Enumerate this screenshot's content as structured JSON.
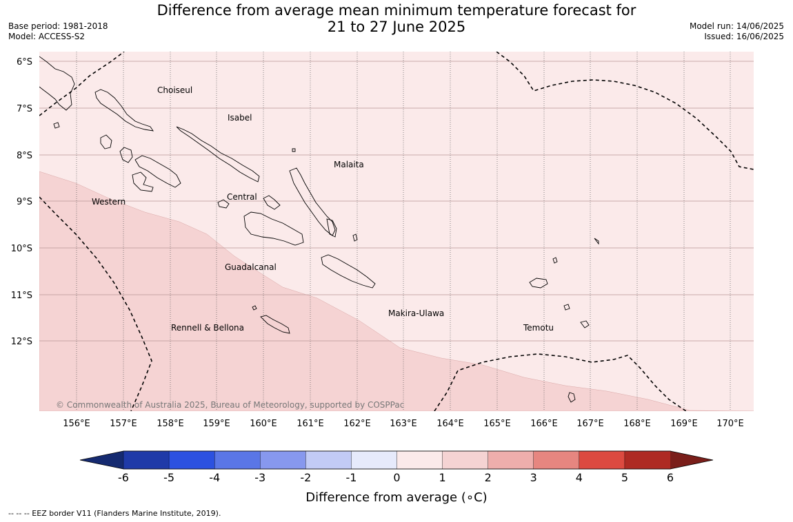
{
  "title": {
    "line1": "Difference from average mean minimum temperature forecast for",
    "line2": "21 to 27 June 2025"
  },
  "meta_left": {
    "base_period": "Base period: 1981-2018",
    "model": "Model: ACCESS-S2"
  },
  "meta_right": {
    "model_run": "Model run: 14/06/2025",
    "issued": "Issued: 16/06/2025"
  },
  "map": {
    "lat_labels": [
      "6°S",
      "7°S",
      "8°S",
      "9°S",
      "10°S",
      "11°S",
      "12°S"
    ],
    "lon_labels": [
      "156°E",
      "157°E",
      "158°E",
      "159°E",
      "160°E",
      "161°E",
      "162°E",
      "163°E",
      "164°E",
      "165°E",
      "166°E",
      "167°E",
      "168°E",
      "169°E",
      "170°E"
    ],
    "province_labels": [
      "Choiseul",
      "Isabel",
      "Malaita",
      "Western",
      "Central",
      "Guadalcanal",
      "Makira-Ulawa",
      "Rennell & Bellona",
      "Temotu"
    ],
    "copyright": "© Commonwealth of Australia 2025, Bureau of Meteorology, supported by COSPPac"
  },
  "colorbar": {
    "ticks": [
      "-6",
      "-5",
      "-4",
      "-3",
      "-2",
      "-1",
      "0",
      "1",
      "2",
      "3",
      "4",
      "5",
      "6"
    ],
    "colors": [
      "#1f3aa8",
      "#2c51e0",
      "#5a76e6",
      "#8798ee",
      "#c2cbf6",
      "#e6eafb",
      "#fbeaea",
      "#f5d3d3",
      "#eeaeac",
      "#e68680",
      "#dc4a40",
      "#ae2a23"
    ],
    "low_extend_color": "#152a70",
    "high_extend_color": "#7a1e1a",
    "label": "Difference from average (∘C)"
  },
  "footer": "--  --  -- EEZ border V11 (Flanders Marine Institute, 2019)."
}
